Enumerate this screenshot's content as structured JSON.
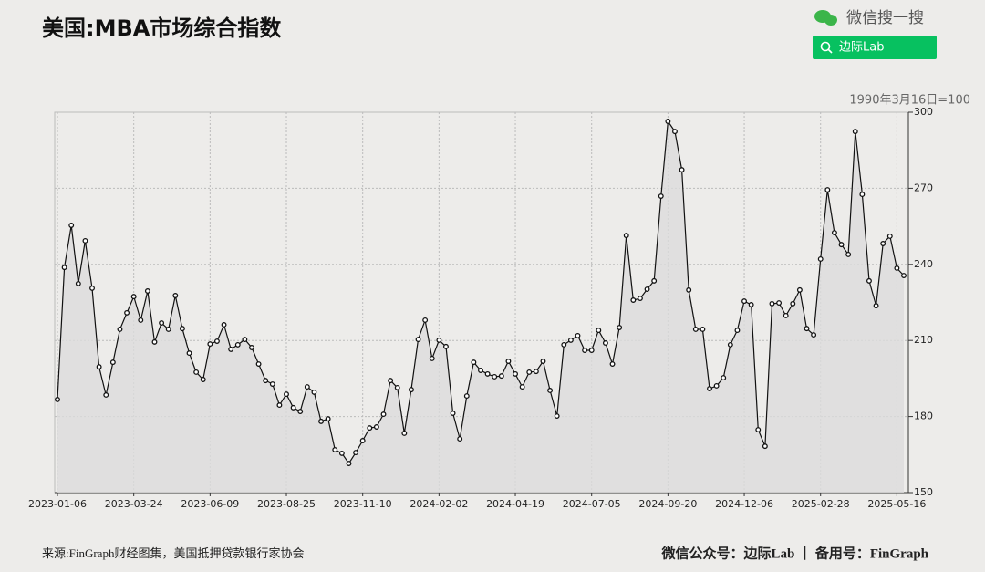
{
  "header": {
    "brand": "微信搜一搜",
    "search": "边际Lab"
  },
  "chart_data": {
    "type": "line",
    "title": "美国:MBA市场综合指数",
    "note": "1990年3月16日=100",
    "source": "来源:FinGraph财经图集，美国抵押贷款银行家协会",
    "credit": "微信公众号：边际Lab ｜ 备用号：FinGraph",
    "categories": [
      "2023-01-06",
      null,
      null,
      null,
      null,
      null,
      null,
      null,
      null,
      null,
      null,
      "2023-03-24",
      null,
      null,
      null,
      null,
      null,
      null,
      null,
      null,
      null,
      null,
      "2023-06-09",
      null,
      null,
      null,
      null,
      null,
      null,
      null,
      null,
      null,
      null,
      "2023-08-25",
      null,
      null,
      null,
      null,
      null,
      null,
      null,
      null,
      null,
      null,
      "2023-11-10",
      null,
      null,
      null,
      null,
      null,
      null,
      null,
      null,
      null,
      null,
      "2024-02-02",
      null,
      null,
      null,
      null,
      null,
      null,
      null,
      null,
      null,
      null,
      "2024-04-19",
      null,
      null,
      null,
      null,
      null,
      null,
      null,
      null,
      null,
      null,
      "2024-07-05",
      null,
      null,
      null,
      null,
      null,
      null,
      null,
      null,
      null,
      null,
      "2024-09-20",
      null,
      null,
      null,
      null,
      null,
      null,
      null,
      null,
      null,
      null,
      "2024-12-06",
      null,
      null,
      null,
      null,
      null,
      null,
      null,
      null,
      null,
      null,
      "2025-02-28",
      null,
      null,
      null,
      null,
      null,
      null,
      null,
      null,
      null,
      null,
      "2025-05-16",
      null
    ],
    "values": [
      186.7,
      238.8,
      255.4,
      232.4,
      249.3,
      230.6,
      199.6,
      188.5,
      201.4,
      214.4,
      220.9,
      227.3,
      218,
      229.5,
      209.4,
      216.9,
      214.4,
      227.7,
      214.7,
      205,
      197.5,
      194.6,
      208.6,
      209.7,
      216.2,
      206.5,
      208.3,
      210.4,
      207.2,
      200.7,
      194.2,
      192.8,
      184.5,
      188.8,
      183.5,
      182,
      191.7,
      189.6,
      178.1,
      179.1,
      166.9,
      165.5,
      161.5,
      165.8,
      170.5,
      175.5,
      175.9,
      180.9,
      194.2,
      191.4,
      173.4,
      190.6,
      210.4,
      218,
      202.9,
      210.1,
      207.6,
      181.3,
      171.2,
      188.1,
      201.4,
      198.2,
      196.8,
      195.7,
      196,
      201.8,
      196.8,
      191.7,
      197.5,
      197.8,
      201.8,
      190.3,
      180.2,
      208.3,
      210.1,
      211.9,
      206.1,
      206.1,
      214,
      209,
      200.7,
      215.1,
      251.4,
      225.9,
      226.6,
      230.2,
      233.5,
      266.9,
      296.4,
      292.4,
      277.3,
      229.9,
      214.4,
      214.4,
      191,
      192.1,
      195.3,
      208.3,
      214,
      225.5,
      224.1,
      174.8,
      168.3,
      224.5,
      224.8,
      219.8,
      224.5,
      229.9,
      214.7,
      212.2,
      242.1,
      269.4,
      252.5,
      247.8,
      243.9,
      292.4,
      267.6,
      233.5,
      223.7,
      248.2,
      251.1,
      238.5,
      235.6
    ],
    "color": "#111111",
    "area_color": "#dcdcdc",
    "ylim": [
      150,
      300
    ],
    "yticks": [
      150,
      180,
      210,
      240,
      270,
      300
    ],
    "grid": true
  }
}
